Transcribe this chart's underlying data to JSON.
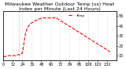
{
  "title": "Milwaukee Weather Outdoor Temp (vs) Heat Index per Minute (Last 24 Hours)",
  "line_color": "#ff0000",
  "line_style": "--",
  "linewidth": 0.8,
  "background_color": "#ffffff",
  "grid_color": "#aaaaaa",
  "grid_style": ":",
  "ylabel_right_labels": [
    "55",
    "45",
    "35",
    "25",
    "15"
  ],
  "ylabel_right_values": [
    55,
    45,
    35,
    25,
    15
  ],
  "ylim": [
    10,
    60
  ],
  "xlim": [
    0,
    143
  ],
  "vline_x": 20,
  "y_data": [
    14,
    14,
    14,
    14.5,
    14.5,
    15,
    15,
    15,
    15,
    15,
    15,
    15,
    15,
    15,
    15,
    15,
    15.5,
    15.5,
    16,
    16,
    16,
    16,
    16,
    17,
    18,
    22,
    27,
    33,
    37,
    40,
    42,
    44,
    45,
    46,
    47,
    47.5,
    48,
    48.5,
    49,
    49.5,
    50,
    50.5,
    51,
    51,
    51.5,
    52,
    52,
    52.5,
    52.5,
    52.5,
    53,
    53,
    53,
    53,
    53,
    53,
    53,
    53,
    53,
    53,
    53,
    53,
    53,
    53,
    53,
    53.5,
    53.5,
    53,
    52.5,
    52,
    51.5,
    51,
    50.5,
    50,
    49.5,
    49,
    48.5,
    48,
    47.5,
    47,
    46.5,
    46,
    45.5,
    45,
    44.5,
    44,
    43.5,
    43,
    42.5,
    42,
    41.5,
    41,
    40.5,
    40,
    39.5,
    39,
    38.5,
    38,
    37.5,
    37,
    36.5,
    36,
    35.5,
    35,
    34.5,
    34,
    33.5,
    33,
    32.5,
    32,
    31.5,
    31,
    30.5,
    30,
    29.5,
    29,
    28.5,
    28,
    27.5,
    27,
    26.5,
    26,
    25.5,
    25,
    24.5,
    24,
    23.5,
    23,
    22.5,
    22,
    21.5,
    21,
    20.5,
    20,
    19.5,
    19
  ],
  "title_fontsize": 4.5,
  "tick_fontsize": 3.5,
  "title_color": "#000000",
  "text_color": "#000000",
  "legend_label_temp": "Temp",
  "legend_fontsize": 3
}
